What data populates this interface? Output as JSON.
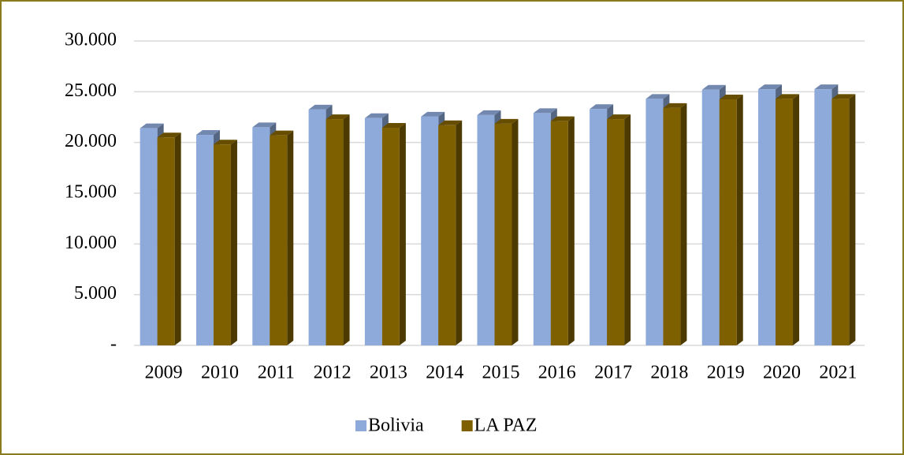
{
  "chart_data": {
    "type": "bar3d",
    "categories": [
      "2009",
      "2010",
      "2011",
      "2012",
      "2013",
      "2014",
      "2015",
      "2016",
      "2017",
      "2018",
      "2019",
      "2020",
      "2021"
    ],
    "series": [
      {
        "name": "Bolivia",
        "color": "#8eaadb",
        "values": [
          21400,
          20750,
          21500,
          23250,
          22400,
          22550,
          22700,
          22900,
          23300,
          24300,
          25200,
          25250,
          25250
        ]
      },
      {
        "name": "LA PAZ",
        "color": "#7f6000",
        "values": [
          20500,
          19800,
          20700,
          22300,
          21450,
          21700,
          21850,
          22100,
          22300,
          23400,
          24250,
          24300,
          24300
        ]
      }
    ],
    "ylim": [
      0,
      30000
    ],
    "yticks": [
      {
        "value": 0,
        "label": "-"
      },
      {
        "value": 5000,
        "label": "5.000"
      },
      {
        "value": 10000,
        "label": "10.000"
      },
      {
        "value": 15000,
        "label": "15.000"
      },
      {
        "value": 20000,
        "label": "20.000"
      },
      {
        "value": 25000,
        "label": "25.000"
      },
      {
        "value": 30000,
        "label": "30.000"
      }
    ],
    "grid": true,
    "legend": "bottom"
  }
}
